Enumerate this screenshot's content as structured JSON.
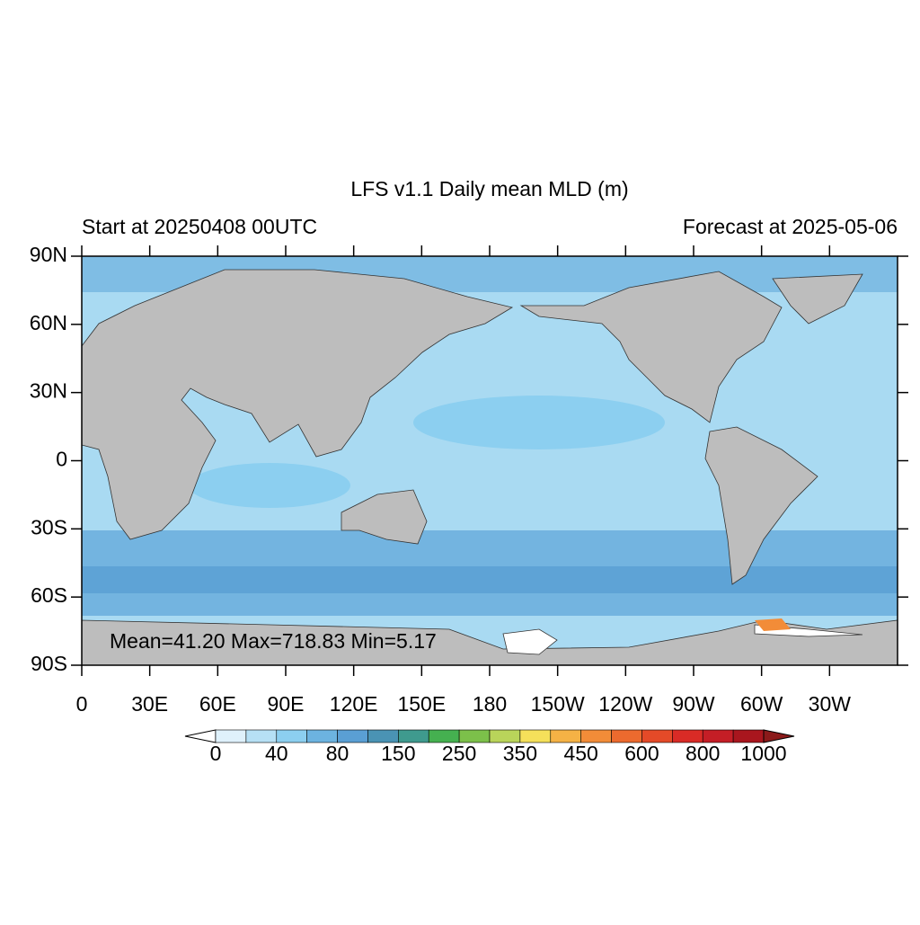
{
  "title": "LFS v1.1 Daily mean MLD (m)",
  "left_subtitle": "Start at 20250408 00UTC",
  "right_subtitle": "Forecast at 2025-05-06",
  "stats": "Mean=41.20  Max=718.83  Min=5.17",
  "map": {
    "xlim": [
      0,
      360
    ],
    "ylim": [
      -90,
      90
    ],
    "xticks": [
      0,
      {
        "value": 30,
        "label": "30E"
      },
      {
        "value": 60,
        "label": "60E"
      },
      {
        "value": 90,
        "label": "90E"
      },
      {
        "value": 120,
        "label": "120E"
      },
      {
        "value": 150,
        "label": "150E"
      },
      180,
      {
        "value": 210,
        "label": "150W"
      },
      {
        "value": 240,
        "label": "120W"
      },
      {
        "value": 270,
        "label": "90W"
      },
      {
        "value": 300,
        "label": "60W"
      },
      {
        "value": 330,
        "label": "30W"
      }
    ],
    "yticks": [
      {
        "value": 90,
        "label": "90N"
      },
      {
        "value": 60,
        "label": "60N"
      },
      {
        "value": 30,
        "label": "30N"
      },
      0,
      {
        "value": -30,
        "label": "30S"
      },
      {
        "value": -60,
        "label": "60S"
      },
      {
        "value": -90,
        "label": "90S"
      }
    ]
  },
  "colorbar": {
    "labels": [
      0,
      40,
      80,
      150,
      250,
      350,
      450,
      600,
      800,
      1000
    ],
    "colors": [
      "#dff1fb",
      "#b6e0f5",
      "#8ccff0",
      "#6cb3e0",
      "#5a9fd4",
      "#4a93b4",
      "#3f9a8e",
      "#45b050",
      "#7cc04a",
      "#b9d45a",
      "#f5e05a",
      "#f5b245",
      "#f28c38",
      "#ec6a2e",
      "#e44a28",
      "#d92b26",
      "#c41e26",
      "#a9161e"
    ],
    "under_color": "#ffffff",
    "over_color": "#8b1a1a"
  }
}
